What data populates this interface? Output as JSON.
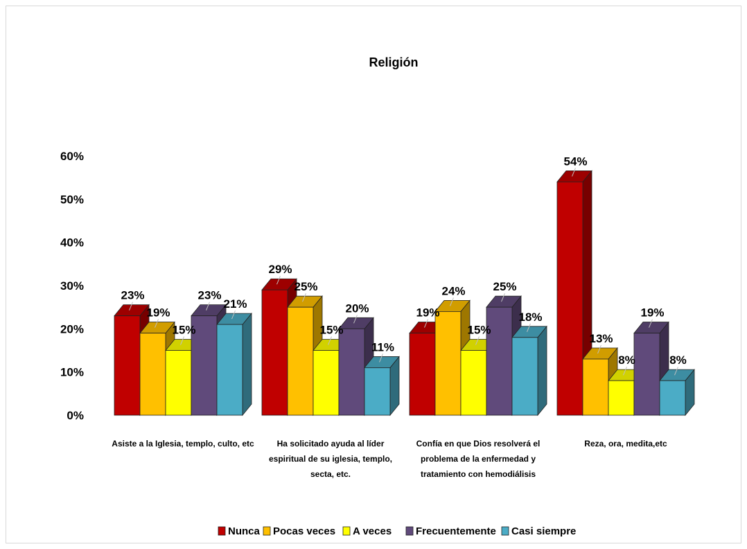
{
  "chart_data": {
    "type": "bar",
    "title": "Religión",
    "xlabel": "",
    "ylabel": "",
    "ylim": [
      0,
      60
    ],
    "yticks": [
      "0%",
      "10%",
      "20%",
      "30%",
      "40%",
      "50%",
      "60%"
    ],
    "grid": false,
    "legend": "bottom",
    "categories": [
      [
        "Asiste a la Iglesia, templo, culto, etc"
      ],
      [
        "Ha solicitado  ayuda al líder",
        "espiritual de  su iglesia, templo,",
        "secta, etc."
      ],
      [
        "Confía en que  Dios resolverá  el",
        "problema  de la enfermedad y",
        "tratamiento  con hemodiálisis"
      ],
      [
        "Reza, ora, medita,etc"
      ]
    ],
    "series": [
      {
        "name": "Nunca",
        "color": "#C00000",
        "values": [
          23,
          29,
          19,
          54
        ],
        "labels": [
          "23%",
          "29%",
          "19%",
          "54%"
        ]
      },
      {
        "name": "Pocas  veces",
        "color": "#FFC000",
        "values": [
          19,
          25,
          24,
          13
        ],
        "labels": [
          "19%",
          "25%",
          "24%",
          "13%"
        ]
      },
      {
        "name": "A veces",
        "color": "#FFFF00",
        "values": [
          15,
          15,
          15,
          8
        ],
        "labels": [
          "15%",
          "15%",
          "15%",
          "8%"
        ]
      },
      {
        "name": "Frecuentemente",
        "color": "#604A7B",
        "values": [
          23,
          20,
          25,
          19
        ],
        "labels": [
          "23%",
          "20%",
          "25%",
          "19%"
        ]
      },
      {
        "name": "Casi siempre",
        "color": "#4BACC6",
        "values": [
          21,
          11,
          18,
          8
        ],
        "labels": [
          "21%",
          "11%",
          "18%",
          "8%"
        ]
      }
    ]
  }
}
